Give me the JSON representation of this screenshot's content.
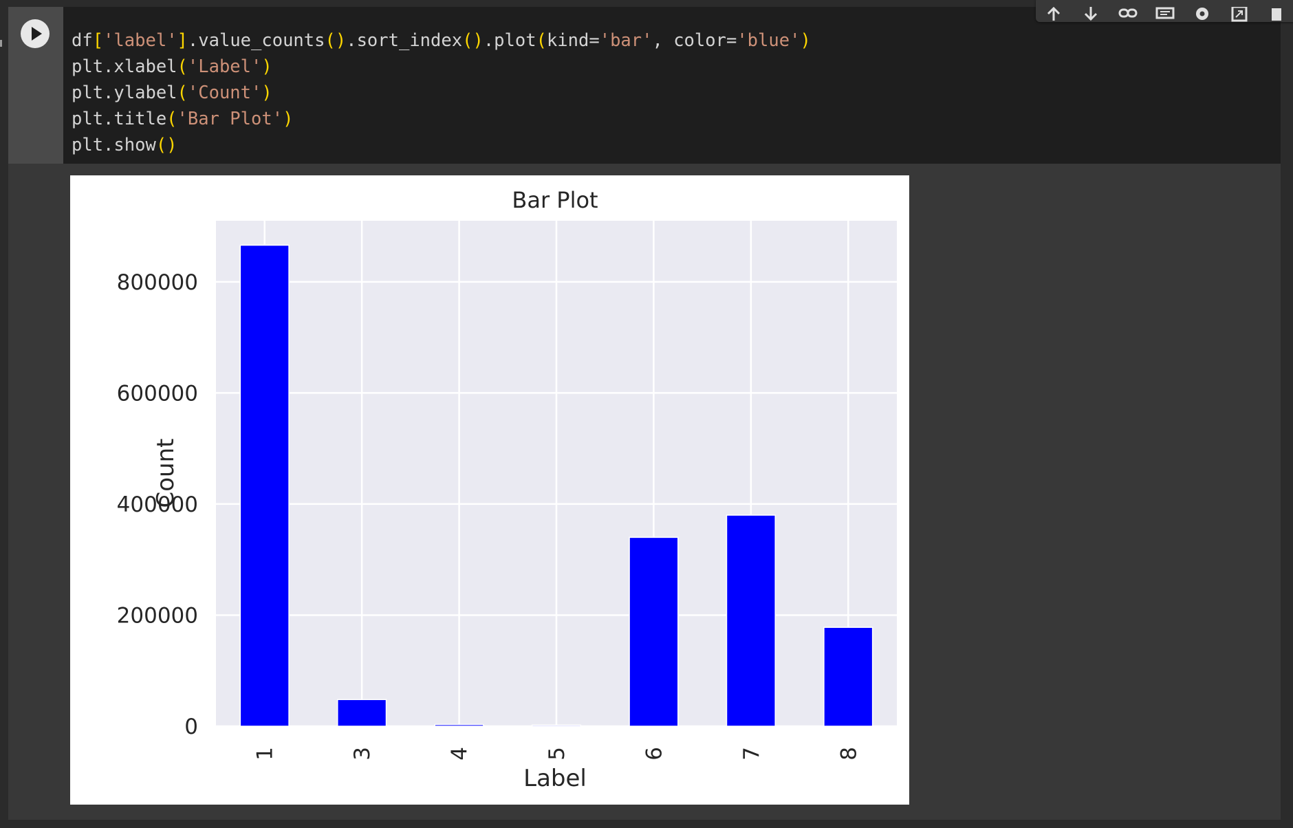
{
  "cell": {
    "run_button_icon": "play-icon",
    "code_lines": [
      [
        {
          "t": "df",
          "c": "default"
        },
        {
          "t": "[",
          "c": "bracket"
        },
        {
          "t": "'label'",
          "c": "string"
        },
        {
          "t": "]",
          "c": "bracket"
        },
        {
          "t": ".value_counts",
          "c": "default"
        },
        {
          "t": "()",
          "c": "bracket"
        },
        {
          "t": ".sort_index",
          "c": "default"
        },
        {
          "t": "()",
          "c": "bracket"
        },
        {
          "t": ".plot",
          "c": "default"
        },
        {
          "t": "(",
          "c": "bracket"
        },
        {
          "t": "kind=",
          "c": "default"
        },
        {
          "t": "'bar'",
          "c": "string"
        },
        {
          "t": ", color=",
          "c": "default"
        },
        {
          "t": "'blue'",
          "c": "string"
        },
        {
          "t": ")",
          "c": "bracket"
        }
      ],
      [
        {
          "t": "plt.xlabel",
          "c": "default"
        },
        {
          "t": "(",
          "c": "bracket"
        },
        {
          "t": "'Label'",
          "c": "string"
        },
        {
          "t": ")",
          "c": "bracket"
        }
      ],
      [
        {
          "t": "plt.ylabel",
          "c": "default"
        },
        {
          "t": "(",
          "c": "bracket"
        },
        {
          "t": "'Count'",
          "c": "string"
        },
        {
          "t": ")",
          "c": "bracket"
        }
      ],
      [
        {
          "t": "plt.title",
          "c": "default"
        },
        {
          "t": "(",
          "c": "bracket"
        },
        {
          "t": "'Bar Plot'",
          "c": "string"
        },
        {
          "t": ")",
          "c": "bracket"
        }
      ],
      [
        {
          "t": "plt.show",
          "c": "default"
        },
        {
          "t": "()",
          "c": "bracket"
        }
      ]
    ],
    "toolbar_icons": [
      "move-up-icon",
      "move-down-icon",
      "link-icon",
      "comment-icon",
      "gear-icon",
      "mirror-cell-icon",
      "delete-icon",
      "more-options-icon"
    ]
  },
  "colors": {
    "default": "#d4d4d4",
    "string": "#ce9178",
    "bracket": "#ffd700",
    "bar": "#0000ff",
    "plot_background": "#eaeaf2"
  },
  "chart_data": {
    "type": "bar",
    "title": "Bar Plot",
    "xlabel": "Label",
    "ylabel": "Count",
    "categories": [
      "1",
      "3",
      "4",
      "5",
      "6",
      "7",
      "8"
    ],
    "values": [
      866000,
      48000,
      3000,
      2000,
      340000,
      380000,
      178000
    ],
    "ylim": [
      0,
      910000
    ],
    "yticks": [
      0,
      200000,
      400000,
      600000,
      800000
    ],
    "ytick_labels": [
      "0",
      "200000",
      "400000",
      "600000",
      "800000"
    ],
    "xtick_rotation": 90,
    "grid": true,
    "legend": "none",
    "bar_color": "blue"
  }
}
